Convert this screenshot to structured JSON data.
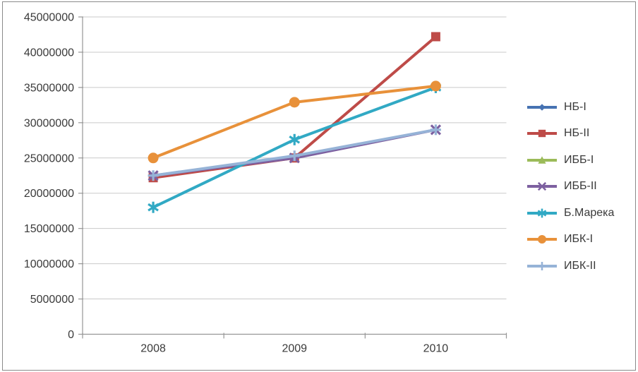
{
  "figure": {
    "background": "#FFFFFF",
    "border_color": "#8A8A8A"
  },
  "chart_data": {
    "type": "line",
    "title": "",
    "xlabel": "",
    "ylabel": "",
    "categories": [
      "2008",
      "2009",
      "2010"
    ],
    "ylim": [
      0,
      45000000
    ],
    "ytick_interval": 5000000,
    "yticks": [
      0,
      5000000,
      10000000,
      15000000,
      20000000,
      25000000,
      30000000,
      35000000,
      40000000,
      45000000
    ],
    "ytick_labels": [
      "0",
      "5000000",
      "10000000",
      "15000000",
      "20000000",
      "25000000",
      "30000000",
      "35000000",
      "40000000",
      "45000000"
    ],
    "grid": "horizontal",
    "legend_position": "right",
    "axis_color": "#969696",
    "gridline_color": "#C9C9C9",
    "label_color": "#3A3A3A",
    "series": [
      {
        "label": "НБ-I",
        "color": "#4672B2",
        "marker": "diamond",
        "values": [
          null,
          null,
          null
        ],
        "note": "legend entry only; line not visible in plot (hidden behind overlapping series)"
      },
      {
        "label": "НБ-II",
        "color": "#BE4B48",
        "marker": "square",
        "values": [
          22200000,
          25000000,
          42200000
        ]
      },
      {
        "label": "ИББ-I",
        "color": "#9BBB59",
        "marker": "triangle",
        "values": [
          null,
          null,
          null
        ],
        "note": "legend entry only; line not visible in plot (hidden behind overlapping series)"
      },
      {
        "label": "ИББ-II",
        "color": "#7D60A0",
        "marker": "x",
        "values": [
          22500000,
          25000000,
          29000000
        ]
      },
      {
        "label": "Б.Марека",
        "color": "#31A9C4",
        "marker": "asterisk",
        "values": [
          18000000,
          27600000,
          35000000
        ]
      },
      {
        "label": "ИБК-I",
        "color": "#E8913A",
        "marker": "circle",
        "values": [
          25000000,
          32900000,
          35200000
        ]
      },
      {
        "label": "ИБК-II",
        "color": "#96B3D7",
        "marker": "plus",
        "values": [
          22500000,
          25300000,
          29000000
        ]
      }
    ]
  }
}
